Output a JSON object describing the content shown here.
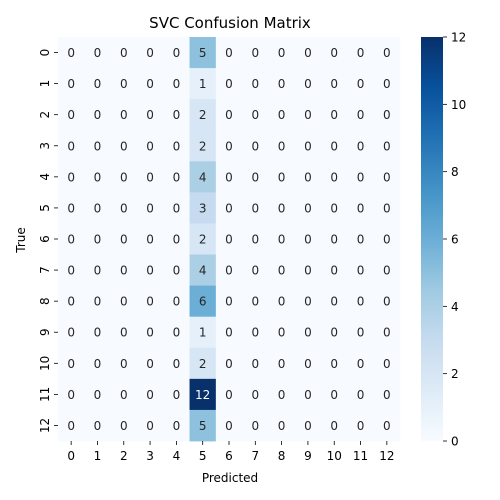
{
  "chart_data": {
    "type": "heatmap",
    "title": "SVC Confusion Matrix",
    "xlabel": "Predicted",
    "ylabel": "True",
    "x_ticks": [
      "0",
      "1",
      "2",
      "3",
      "4",
      "5",
      "6",
      "7",
      "8",
      "9",
      "10",
      "11",
      "12"
    ],
    "y_ticks": [
      "0",
      "1",
      "2",
      "3",
      "4",
      "5",
      "6",
      "7",
      "8",
      "9",
      "10",
      "11",
      "12"
    ],
    "matrix": [
      [
        0,
        0,
        0,
        0,
        0,
        5,
        0,
        0,
        0,
        0,
        0,
        0,
        0
      ],
      [
        0,
        0,
        0,
        0,
        0,
        1,
        0,
        0,
        0,
        0,
        0,
        0,
        0
      ],
      [
        0,
        0,
        0,
        0,
        0,
        2,
        0,
        0,
        0,
        0,
        0,
        0,
        0
      ],
      [
        0,
        0,
        0,
        0,
        0,
        2,
        0,
        0,
        0,
        0,
        0,
        0,
        0
      ],
      [
        0,
        0,
        0,
        0,
        0,
        4,
        0,
        0,
        0,
        0,
        0,
        0,
        0
      ],
      [
        0,
        0,
        0,
        0,
        0,
        3,
        0,
        0,
        0,
        0,
        0,
        0,
        0
      ],
      [
        0,
        0,
        0,
        0,
        0,
        2,
        0,
        0,
        0,
        0,
        0,
        0,
        0
      ],
      [
        0,
        0,
        0,
        0,
        0,
        4,
        0,
        0,
        0,
        0,
        0,
        0,
        0
      ],
      [
        0,
        0,
        0,
        0,
        0,
        6,
        0,
        0,
        0,
        0,
        0,
        0,
        0
      ],
      [
        0,
        0,
        0,
        0,
        0,
        1,
        0,
        0,
        0,
        0,
        0,
        0,
        0
      ],
      [
        0,
        0,
        0,
        0,
        0,
        2,
        0,
        0,
        0,
        0,
        0,
        0,
        0
      ],
      [
        0,
        0,
        0,
        0,
        0,
        12,
        0,
        0,
        0,
        0,
        0,
        0,
        0
      ],
      [
        0,
        0,
        0,
        0,
        0,
        5,
        0,
        0,
        0,
        0,
        0,
        0,
        0
      ]
    ],
    "colorbar": {
      "min": 0,
      "max": 12,
      "ticks": [
        0,
        2,
        4,
        6,
        8,
        10,
        12
      ]
    },
    "colormap": "Blues",
    "colors": {
      "low": "#f7fbff",
      "high": "#08306b"
    },
    "grid": false
  }
}
